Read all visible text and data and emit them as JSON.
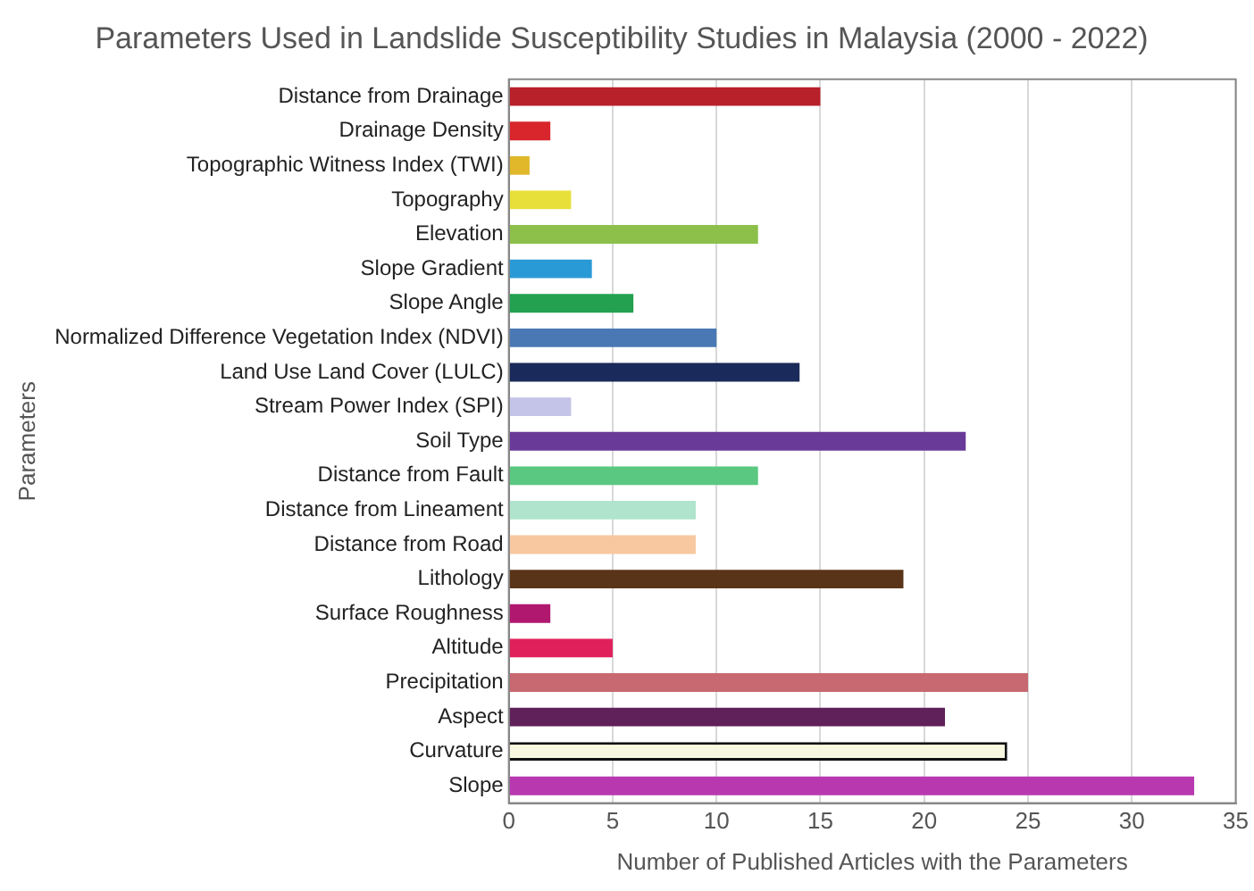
{
  "chart_data": {
    "type": "bar",
    "orientation": "horizontal",
    "title": "Parameters Used in Landslide Susceptibility Studies in Malaysia (2000 - 2022)",
    "xlabel": "Number of Published Articles with the Parameters",
    "ylabel": "Parameters",
    "categories": [
      "Distance from Drainage",
      "Drainage Density",
      "Topographic Witness Index (TWI)",
      "Topography",
      "Elevation",
      "Slope Gradient",
      "Slope Angle",
      "Normalized Difference Vegetation Index (NDVI)",
      "Land Use Land Cover (LULC)",
      "Stream Power Index (SPI)",
      "Soil Type",
      "Distance from Fault",
      "Distance from Lineament",
      "Distance from Road",
      "Lithology",
      "Surface Roughness",
      "Altitude",
      "Precipitation",
      "Aspect",
      "Curvature",
      "Slope"
    ],
    "values": [
      15,
      2,
      1,
      3,
      12,
      4,
      6,
      10,
      14,
      3,
      22,
      12,
      9,
      9,
      19,
      2,
      5,
      25,
      21,
      24,
      33
    ],
    "colors": [
      "#b8202a",
      "#d9262c",
      "#e0b82a",
      "#e8e03a",
      "#8cc04a",
      "#2a9ad6",
      "#23a050",
      "#4a78b4",
      "#1a2a5a",
      "#c4c4e8",
      "#6a3a98",
      "#5ac880",
      "#b0e4cc",
      "#f8c8a0",
      "#5a3418",
      "#b01870",
      "#e0205a",
      "#c86870",
      "#60205a",
      "#f8f8e0",
      "#b838b0"
    ],
    "xlim": [
      0,
      35
    ],
    "xticks": [
      0,
      5,
      10,
      15,
      20,
      25,
      30,
      35
    ],
    "grid": "x",
    "legend": false
  }
}
